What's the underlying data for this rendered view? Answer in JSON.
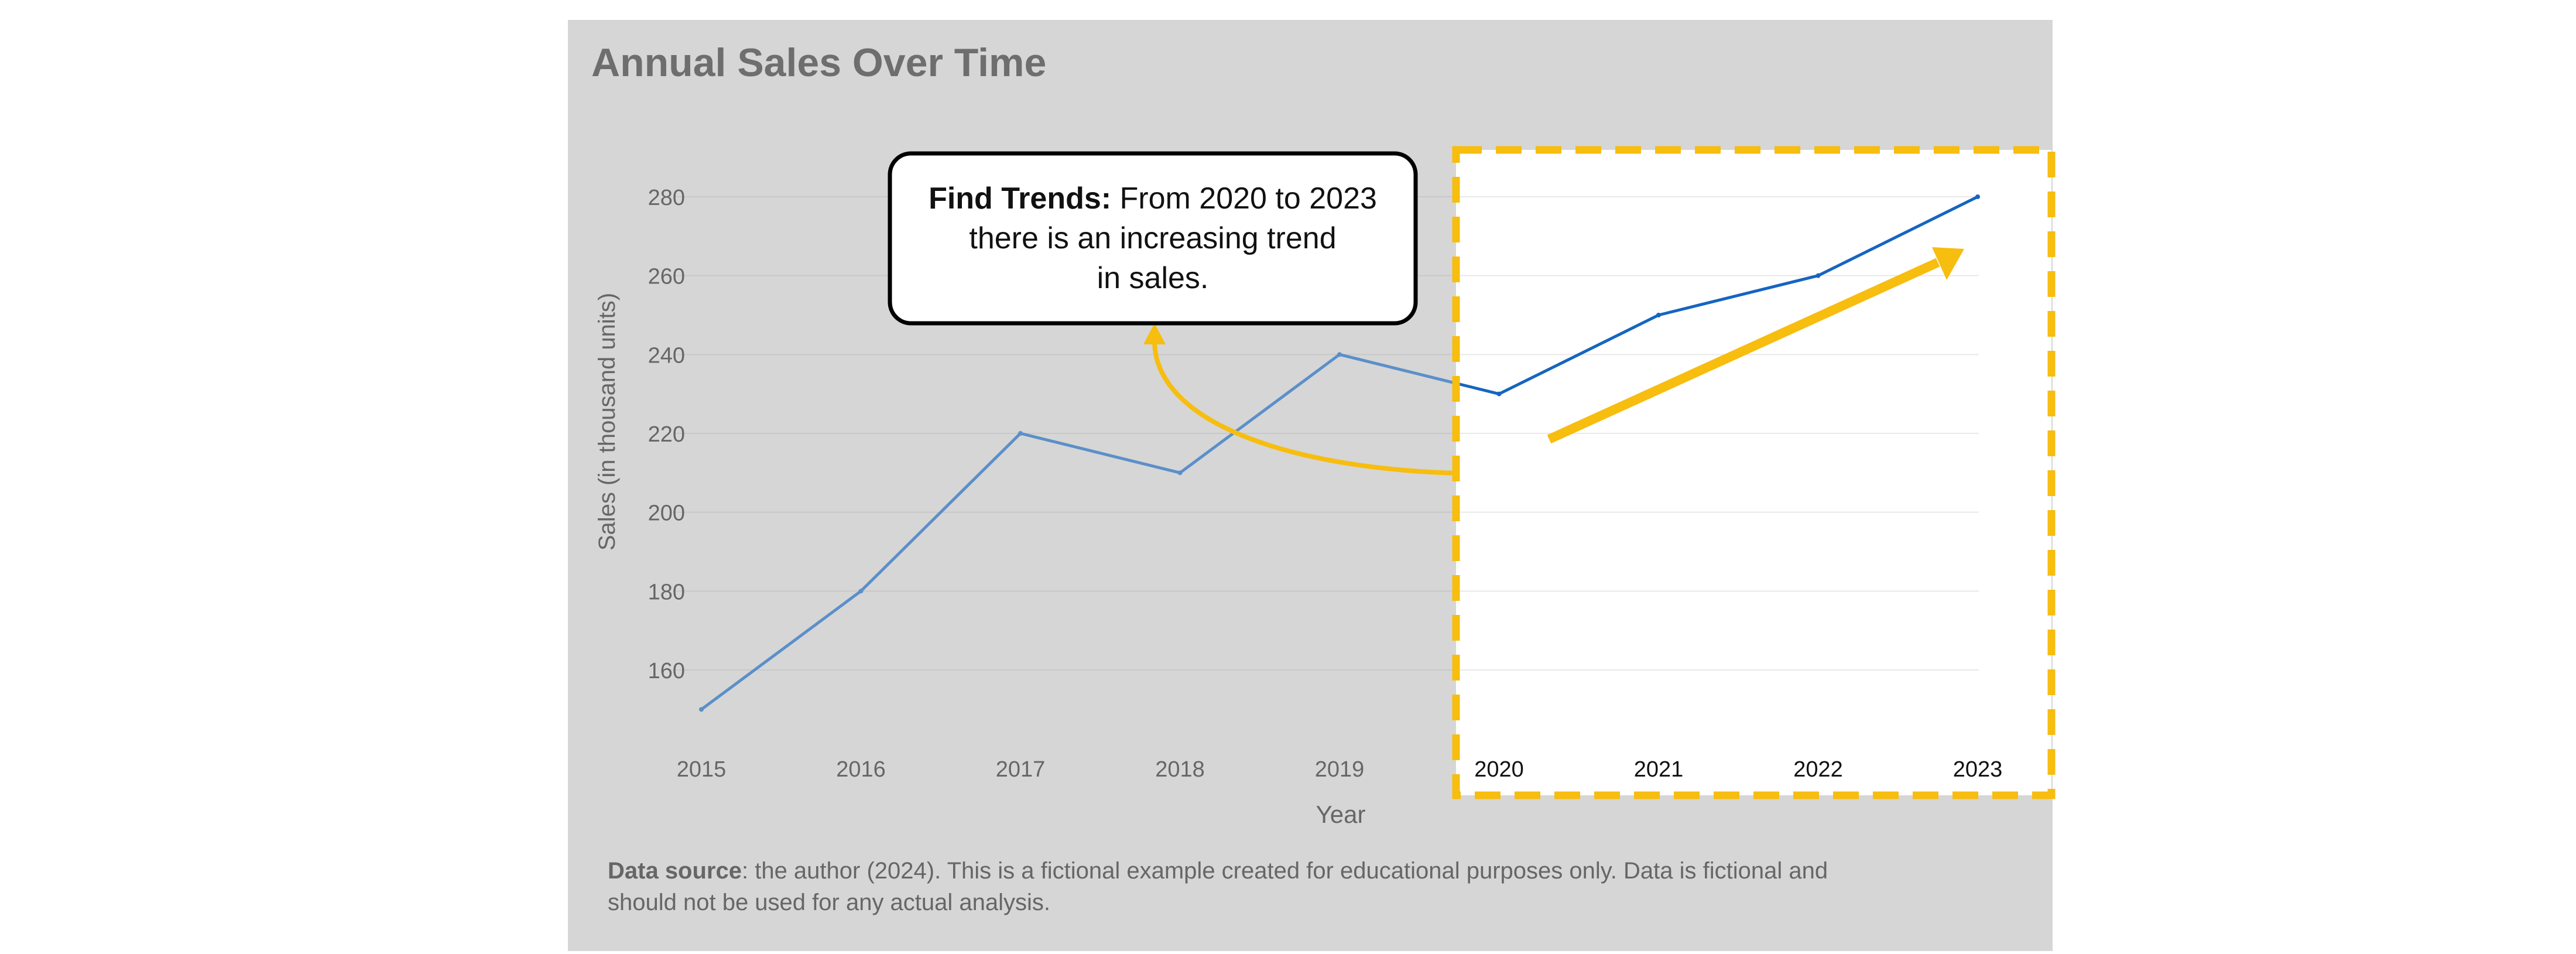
{
  "colors": {
    "panel_background": "#d6d6d6",
    "highlight_background": "#ffffff",
    "line_muted": "#5b8fc9",
    "line_highlight": "#1565c0",
    "accent": "#f7bd0f",
    "title_text": "#6e6e6e",
    "axis_text": "#666666",
    "grid": "#c8c8c8",
    "grid_highlight": "#e9e9e9",
    "callout_border": "#000000"
  },
  "chart_data": {
    "type": "line",
    "title": "Annual Sales Over Time",
    "xlabel": "Year",
    "ylabel": "Sales (in thousand units)",
    "categories": [
      "2015",
      "2016",
      "2017",
      "2018",
      "2019",
      "2020",
      "2021",
      "2022",
      "2023"
    ],
    "series": [
      {
        "values": [
          150,
          180,
          220,
          210,
          240,
          230,
          250,
          260,
          280
        ]
      }
    ],
    "yticks": [
      160,
      180,
      200,
      220,
      240,
      260,
      280
    ],
    "ylim": [
      140,
      290
    ],
    "grid": true,
    "highlight_range": [
      "2020",
      "2023"
    ],
    "annotation": {
      "bold": "Find Trends:",
      "text": "From 2020 to 2023 there is an increasing trend in sales."
    }
  },
  "source_note": {
    "label": "Data source",
    "text": ": the author (2024). This is a fictional example created for educational purposes only. Data is fictional and should not be used for any actual analysis."
  }
}
